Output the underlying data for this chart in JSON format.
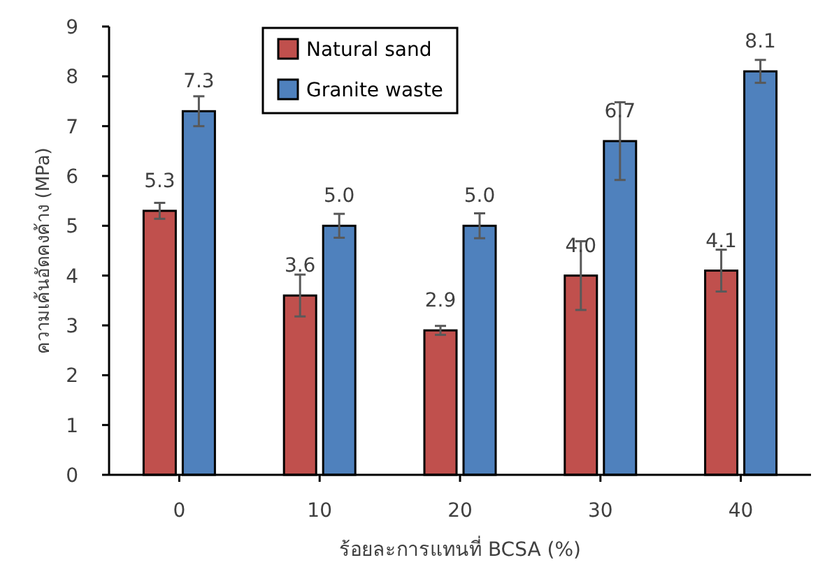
{
  "chart_data": {
    "type": "bar",
    "xlabel": "ร้อยละการแทนที่ BCSA (%)",
    "ylabel": "ความเค้นอัดคงค้าง (MPa)",
    "categories": [
      "0",
      "10",
      "20",
      "30",
      "40"
    ],
    "series": [
      {
        "name": "Natural sand",
        "color": "#c0504d",
        "values": [
          5.3,
          3.6,
          2.9,
          4.0,
          4.1
        ],
        "value_labels": [
          "5.3",
          "3.6",
          "2.9",
          "4.0",
          "4.1"
        ],
        "errors": [
          0.16,
          0.42,
          0.09,
          0.69,
          0.42
        ]
      },
      {
        "name": "Granite waste",
        "color": "#4f81bd",
        "values": [
          7.3,
          5.0,
          5.0,
          6.7,
          8.1
        ],
        "value_labels": [
          "7.3",
          "5.0",
          "5.0",
          "6.7",
          "8.1"
        ],
        "errors": [
          0.3,
          0.24,
          0.25,
          0.78,
          0.23
        ]
      }
    ],
    "ylim": [
      0,
      9
    ],
    "yticks": [
      0,
      1,
      2,
      3,
      4,
      5,
      6,
      7,
      8,
      9
    ],
    "legend": "top",
    "grid": false
  }
}
